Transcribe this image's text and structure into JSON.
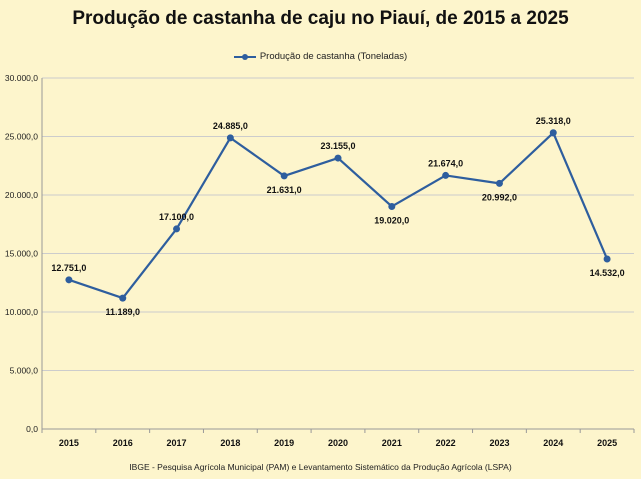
{
  "chart_data": {
    "type": "line",
    "title": "Produção de castanha de caju no Piauí, de 2015 a 2025",
    "xlabel": "",
    "ylabel": "",
    "categories": [
      "2015",
      "2016",
      "2017",
      "2018",
      "2019",
      "2020",
      "2021",
      "2022",
      "2023",
      "2024",
      "2025"
    ],
    "series": [
      {
        "name": "Produção de castanha (Toneladas)",
        "values": [
          12751.0,
          11189.0,
          17100.0,
          24885.0,
          21631.0,
          23155.0,
          19020.0,
          21674.0,
          20992.0,
          25318.0,
          14532.0
        ],
        "labels": [
          "12.751,0",
          "11.189,0",
          "17.100,0",
          "24.885,0",
          "21.631,0",
          "23.155,0",
          "19.020,0",
          "21.674,0",
          "20.992,0",
          "25.318,0",
          "14.532,0"
        ]
      }
    ],
    "ylim": [
      0,
      30000
    ],
    "yticks": [
      0,
      5000,
      10000,
      15000,
      20000,
      25000,
      30000
    ],
    "ytick_labels": [
      "0,0",
      "5.000,0",
      "10.000,0",
      "15.000,0",
      "20.000,0",
      "25.000,0",
      "30.000,0"
    ],
    "grid": true,
    "legend_position": "top-center",
    "line_color": "#2e5e9e",
    "grid_color": "#cccccc",
    "source": "IBGE - Pesquisa Agrícola Municipal (PAM) e Levantamento Sistemático da Produção Agrícola (LSPA)"
  }
}
